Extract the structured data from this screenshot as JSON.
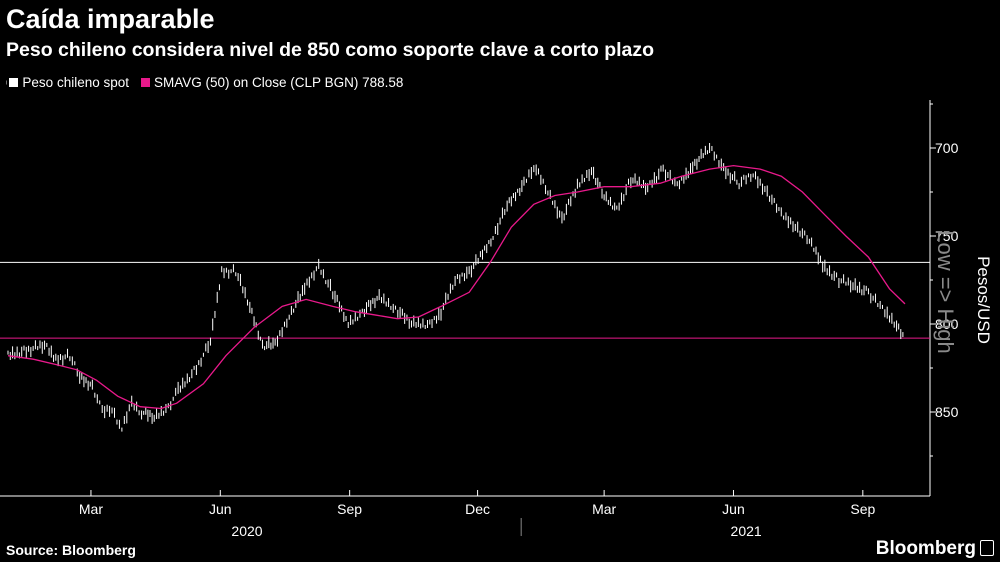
{
  "header": {
    "title": "Caída imparable",
    "subtitle": "Peso chileno considera nivel de 850 como soporte clave a corto plazo"
  },
  "legend": {
    "icon": "candlestick-icon",
    "series_1": "Peso chileno spot",
    "series_1_color": "#ffffff",
    "series_2": "SMAVG (50)  on Close (CLP BGN) 788.58",
    "series_2_color": "#e8198b"
  },
  "footer": {
    "source": "Source: Bloomberg",
    "brand": "Bloomberg"
  },
  "chart_data": {
    "type": "line",
    "ylabel": "Pesos/USD",
    "axis_annotation": "Low => High",
    "y_inverted": true,
    "ylim": [
      880,
      650
    ],
    "yticks": [
      700,
      750,
      800,
      850
    ],
    "x_start": "2020-01-02",
    "x_end": "2021-10-01",
    "x_ticks": [
      {
        "label": "Mar",
        "date": "2020-03-01"
      },
      {
        "label": "Jun",
        "date": "2020-06-01"
      },
      {
        "label": "Sep",
        "date": "2020-09-01"
      },
      {
        "label": "Dec",
        "date": "2020-12-01"
      },
      {
        "label": "Mar",
        "date": "2021-03-01"
      },
      {
        "label": "Jun",
        "date": "2021-06-01"
      },
      {
        "label": "Sep",
        "date": "2021-09-01"
      }
    ],
    "x_years": [
      {
        "label": "2020",
        "date": "2020-06-20"
      },
      {
        "label": "2021",
        "date": "2021-06-10"
      }
    ],
    "year_divider_date": "2021-01-01",
    "reference_lines": [
      {
        "value": 765,
        "color": "#ffffff"
      },
      {
        "value": 808,
        "color": "#e8198b"
      }
    ],
    "series": [
      {
        "name": "Peso chileno spot",
        "color": "#ffffff",
        "points": [
          [
            "2020-01-02",
            818
          ],
          [
            "2020-01-15",
            815
          ],
          [
            "2020-01-28",
            812
          ],
          [
            "2020-02-05",
            820
          ],
          [
            "2020-02-15",
            818
          ],
          [
            "2020-02-22",
            830
          ],
          [
            "2020-03-02",
            835
          ],
          [
            "2020-03-09",
            850
          ],
          [
            "2020-03-16",
            848
          ],
          [
            "2020-03-23",
            860
          ],
          [
            "2020-03-30",
            845
          ],
          [
            "2020-04-06",
            850
          ],
          [
            "2020-04-15",
            853
          ],
          [
            "2020-04-25",
            847
          ],
          [
            "2020-05-02",
            838
          ],
          [
            "2020-05-15",
            825
          ],
          [
            "2020-05-25",
            810
          ],
          [
            "2020-06-02",
            770
          ],
          [
            "2020-06-12",
            770
          ],
          [
            "2020-06-22",
            790
          ],
          [
            "2020-07-01",
            812
          ],
          [
            "2020-07-10",
            812
          ],
          [
            "2020-07-20",
            795
          ],
          [
            "2020-07-31",
            780
          ],
          [
            "2020-08-10",
            767
          ],
          [
            "2020-08-20",
            782
          ],
          [
            "2020-08-31",
            800
          ],
          [
            "2020-09-10",
            793
          ],
          [
            "2020-09-22",
            785
          ],
          [
            "2020-10-02",
            790
          ],
          [
            "2020-10-15",
            800
          ],
          [
            "2020-10-28",
            800
          ],
          [
            "2020-11-05",
            793
          ],
          [
            "2020-11-15",
            775
          ],
          [
            "2020-11-25",
            770
          ],
          [
            "2020-12-03",
            762
          ],
          [
            "2020-12-12",
            750
          ],
          [
            "2020-12-22",
            733
          ],
          [
            "2021-01-03",
            720
          ],
          [
            "2021-01-10",
            710
          ],
          [
            "2021-01-20",
            725
          ],
          [
            "2021-01-30",
            740
          ],
          [
            "2021-02-10",
            722
          ],
          [
            "2021-02-20",
            712
          ],
          [
            "2021-03-01",
            728
          ],
          [
            "2021-03-10",
            735
          ],
          [
            "2021-03-20",
            718
          ],
          [
            "2021-04-01",
            722
          ],
          [
            "2021-04-12",
            712
          ],
          [
            "2021-04-22",
            722
          ],
          [
            "2021-05-03",
            710
          ],
          [
            "2021-05-15",
            700
          ],
          [
            "2021-05-25",
            712
          ],
          [
            "2021-06-05",
            720
          ],
          [
            "2021-06-15",
            715
          ],
          [
            "2021-06-25",
            725
          ],
          [
            "2021-07-05",
            738
          ],
          [
            "2021-07-15",
            744
          ],
          [
            "2021-07-25",
            753
          ],
          [
            "2021-08-05",
            768
          ],
          [
            "2021-08-15",
            775
          ],
          [
            "2021-08-25",
            778
          ],
          [
            "2021-09-05",
            782
          ],
          [
            "2021-09-15",
            792
          ],
          [
            "2021-09-25",
            800
          ],
          [
            "2021-10-01",
            808
          ]
        ]
      },
      {
        "name": "SMAVG (50)  on Close (CLP BGN) 788.58",
        "color": "#e8198b",
        "points": [
          [
            "2020-01-02",
            818
          ],
          [
            "2020-01-20",
            820
          ],
          [
            "2020-02-05",
            823
          ],
          [
            "2020-02-20",
            826
          ],
          [
            "2020-03-05",
            832
          ],
          [
            "2020-03-20",
            841
          ],
          [
            "2020-04-05",
            847
          ],
          [
            "2020-04-20",
            848
          ],
          [
            "2020-05-01",
            845
          ],
          [
            "2020-05-20",
            834
          ],
          [
            "2020-06-05",
            818
          ],
          [
            "2020-06-25",
            802
          ],
          [
            "2020-07-15",
            790
          ],
          [
            "2020-08-01",
            786
          ],
          [
            "2020-08-20",
            790
          ],
          [
            "2020-09-05",
            793
          ],
          [
            "2020-09-20",
            795
          ],
          [
            "2020-10-05",
            797
          ],
          [
            "2020-10-20",
            796
          ],
          [
            "2020-11-05",
            790
          ],
          [
            "2020-11-25",
            782
          ],
          [
            "2020-12-10",
            765
          ],
          [
            "2020-12-25",
            745
          ],
          [
            "2021-01-10",
            732
          ],
          [
            "2021-01-25",
            727
          ],
          [
            "2021-02-10",
            725
          ],
          [
            "2021-03-01",
            722
          ],
          [
            "2021-03-20",
            722
          ],
          [
            "2021-04-10",
            720
          ],
          [
            "2021-04-25",
            716
          ],
          [
            "2021-05-15",
            712
          ],
          [
            "2021-06-01",
            710
          ],
          [
            "2021-06-20",
            712
          ],
          [
            "2021-07-05",
            716
          ],
          [
            "2021-07-20",
            725
          ],
          [
            "2021-08-05",
            738
          ],
          [
            "2021-08-20",
            750
          ],
          [
            "2021-09-05",
            762
          ],
          [
            "2021-09-20",
            780
          ],
          [
            "2021-10-01",
            788.58
          ]
        ]
      }
    ]
  }
}
